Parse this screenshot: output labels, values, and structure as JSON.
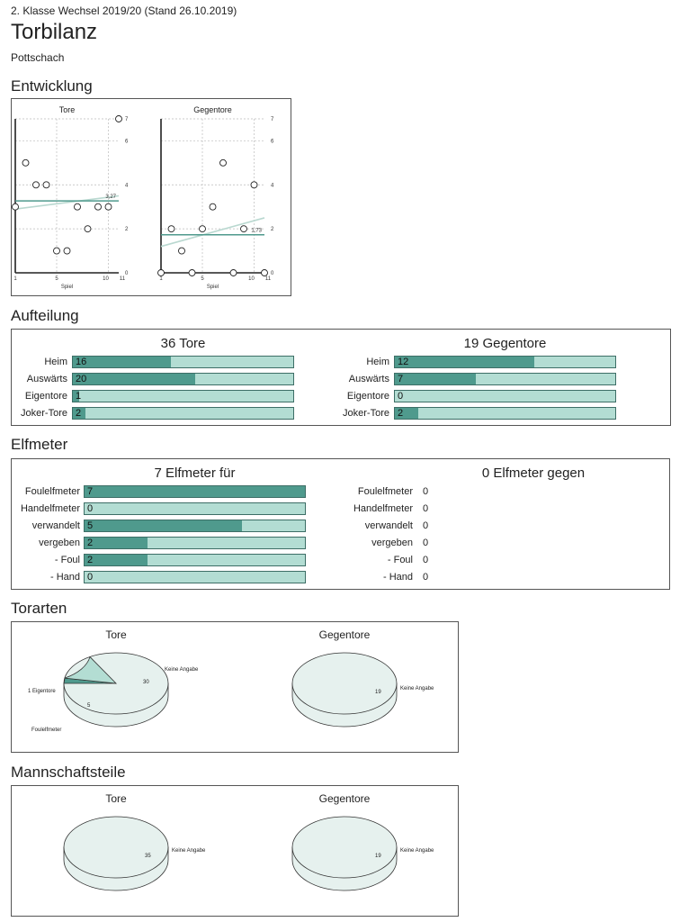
{
  "header": {
    "league": "2. Klasse Wechsel 2019/20 (Stand 26.10.2019)",
    "title": "Torbilanz",
    "team": "Pottschach"
  },
  "sections": {
    "entwicklung": "Entwicklung",
    "aufteilung": "Aufteilung",
    "elfmeter": "Elfmeter",
    "torarten": "Torarten",
    "mannschaftsteile": "Mannschaftsteile"
  },
  "colors": {
    "bar_fill": "#4f9a8d",
    "bar_bg": "#b3ddd3",
    "trend": "#b9d8d0",
    "avg": "#4f9a8d",
    "pie": "#e6f1ee"
  },
  "chart_data": [
    {
      "type": "scatter",
      "title": "Tore",
      "xlabel": "Spiel",
      "x_ticks": [
        "1",
        "5",
        "10",
        "11"
      ],
      "y_ticks": [
        "0",
        "2",
        "4",
        "6",
        "7"
      ],
      "xlim": [
        1,
        11
      ],
      "ylim": [
        0,
        7
      ],
      "x": [
        1,
        2,
        3,
        4,
        5,
        6,
        7,
        8,
        9,
        10,
        11
      ],
      "y": [
        3,
        5,
        4,
        4,
        1,
        1,
        3,
        2,
        3,
        3,
        7
      ],
      "average": 3.27,
      "average_label": "3,27",
      "trend": [
        2.9,
        3.5
      ]
    },
    {
      "type": "scatter",
      "title": "Gegentore",
      "xlabel": "Spiel",
      "x_ticks": [
        "1",
        "5",
        "10",
        "11"
      ],
      "y_ticks": [
        "0",
        "2",
        "4",
        "6",
        "7"
      ],
      "xlim": [
        1,
        11
      ],
      "ylim": [
        0,
        7
      ],
      "x": [
        1,
        2,
        3,
        4,
        5,
        6,
        7,
        8,
        9,
        10,
        11
      ],
      "y": [
        0,
        2,
        1,
        0,
        2,
        3,
        5,
        0,
        2,
        4,
        0
      ],
      "average": 1.73,
      "average_label": "1,73",
      "trend": [
        1.2,
        2.5
      ]
    },
    {
      "type": "pie",
      "title": "Tore",
      "group": "Torarten",
      "slices": [
        {
          "label": "Keine Angabe",
          "value": 30
        },
        {
          "label": "Eigentore",
          "value": 1,
          "text": "1 Eigentore"
        },
        {
          "label": "Foulelfmeter",
          "value": 5
        }
      ]
    },
    {
      "type": "pie",
      "title": "Gegentore",
      "group": "Torarten",
      "slices": [
        {
          "label": "Keine Angabe",
          "value": 19
        }
      ]
    },
    {
      "type": "pie",
      "title": "Tore",
      "group": "Mannschaftsteile",
      "slices": [
        {
          "label": "Keine Angabe",
          "value": 35
        }
      ]
    },
    {
      "type": "pie",
      "title": "Gegentore",
      "group": "Mannschaftsteile",
      "slices": [
        {
          "label": "Keine Angabe",
          "value": 19
        }
      ]
    }
  ],
  "aufteilung": {
    "tore": {
      "title": "36 Tore",
      "max": 36,
      "rows": [
        {
          "label": "Heim",
          "value": 16
        },
        {
          "label": "Auswärts",
          "value": 20
        },
        {
          "label": "Eigentore",
          "value": 1
        },
        {
          "label": "Joker-Tore",
          "value": 2
        }
      ]
    },
    "gegentore": {
      "title": "19 Gegentore",
      "max": 19,
      "rows": [
        {
          "label": "Heim",
          "value": 12
        },
        {
          "label": "Auswärts",
          "value": 7
        },
        {
          "label": "Eigentore",
          "value": 0
        },
        {
          "label": "Joker-Tore",
          "value": 2
        }
      ]
    }
  },
  "elfmeter": {
    "fuer": {
      "title": "7 Elfmeter für",
      "max": 7,
      "rows": [
        {
          "label": "Foulelfmeter",
          "value": 7
        },
        {
          "label": "Handelfmeter",
          "value": 0
        },
        {
          "label": "verwandelt",
          "value": 5
        },
        {
          "label": "vergeben",
          "value": 2
        },
        {
          "label": "- Foul",
          "value": 2
        },
        {
          "label": "- Hand",
          "value": 0
        }
      ]
    },
    "gegen": {
      "title": "0 Elfmeter gegen",
      "rows": [
        {
          "label": "Foulelfmeter",
          "value": 0
        },
        {
          "label": "Handelfmeter",
          "value": 0
        },
        {
          "label": "verwandelt",
          "value": 0
        },
        {
          "label": "vergeben",
          "value": 0
        },
        {
          "label": "- Foul",
          "value": 0
        },
        {
          "label": "- Hand",
          "value": 0
        }
      ]
    }
  }
}
